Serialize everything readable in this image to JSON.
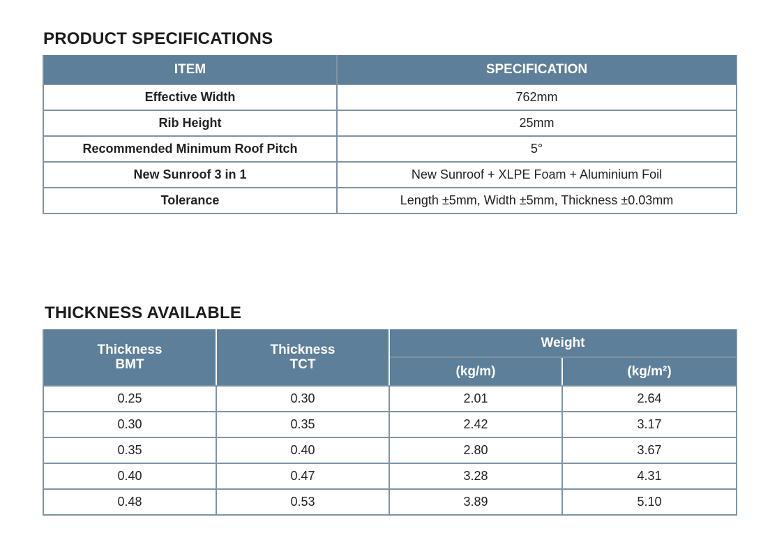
{
  "spec_section": {
    "title": "PRODUCT SPECIFICATIONS",
    "headers": {
      "item": "ITEM",
      "specification": "SPECIFICATION"
    },
    "rows": [
      {
        "item": "Effective Width",
        "value": "762mm"
      },
      {
        "item": "Rib Height",
        "value": "25mm"
      },
      {
        "item": "Recommended Minimum Roof Pitch",
        "value": "5°"
      },
      {
        "item": "New Sunroof 3 in 1",
        "value": "New Sunroof + XLPE Foam + Aluminium Foil"
      },
      {
        "item": "Tolerance",
        "value": "Length ±5mm, Width ±5mm, Thickness ±0.03mm"
      }
    ]
  },
  "thickness_section": {
    "title": "THICKNESS AVAILABLE",
    "headers": {
      "bmt_line1": "Thickness",
      "bmt_line2": "BMT",
      "tct_line1": "Thickness",
      "tct_line2": "TCT",
      "weight": "Weight",
      "kg_m": "(kg/m)",
      "kg_m2": "(kg/m²)"
    },
    "rows": [
      {
        "bmt": "0.25",
        "tct": "0.30",
        "kg_m": "2.01",
        "kg_m2": "2.64"
      },
      {
        "bmt": "0.30",
        "tct": "0.35",
        "kg_m": "2.42",
        "kg_m2": "3.17"
      },
      {
        "bmt": "0.35",
        "tct": "0.40",
        "kg_m": "2.80",
        "kg_m2": "3.67"
      },
      {
        "bmt": "0.40",
        "tct": "0.47",
        "kg_m": "3.28",
        "kg_m2": "4.31"
      },
      {
        "bmt": "0.48",
        "tct": "0.53",
        "kg_m": "3.89",
        "kg_m2": "5.10"
      }
    ]
  },
  "colors": {
    "header_bg": "#5d7f99",
    "border": "#7d94a6"
  }
}
